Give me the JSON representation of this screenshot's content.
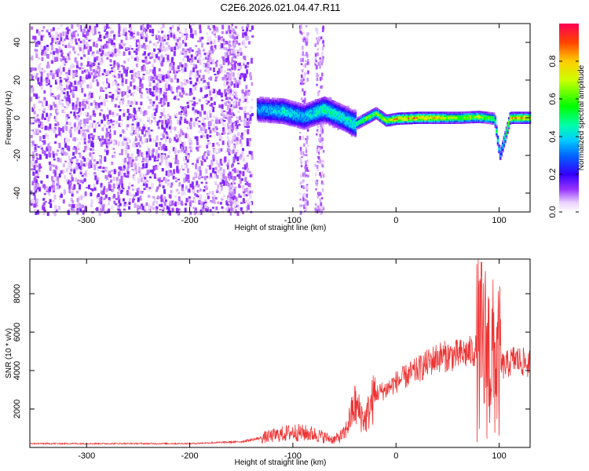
{
  "figure": {
    "title": "C2E6.2026.021.04.47.R11"
  },
  "chart_data": [
    {
      "type": "heatmap",
      "title": "C2E6.2026.021.04.47.R11",
      "xlabel": "Height of straight line (km)",
      "ylabel": "Frequency (Hz)",
      "xlim": [
        -355,
        130
      ],
      "ylim": [
        -50,
        50
      ],
      "xticks": [
        -300,
        -200,
        -100,
        0,
        100
      ],
      "yticks": [
        -40,
        -20,
        0,
        20,
        40
      ],
      "colorbar": {
        "label": "Normalized spectral amplitude",
        "range": [
          0,
          1
        ],
        "ticks": [
          0.0,
          0.2,
          0.4,
          0.6,
          0.8
        ],
        "colormap": "rainbow (white-violet-blue-cyan-green-yellow-red)"
      },
      "regions": [
        {
          "x_range": [
            -355,
            -140
          ],
          "description": "scattered low-amplitude noise (0.0-0.2) across all frequencies"
        },
        {
          "x_range": [
            -140,
            -40
          ],
          "frequency_center": 3,
          "amplitude_range": [
            0.2,
            0.5
          ]
        },
        {
          "x_range": [
            -40,
            130
          ],
          "frequency_center": 0.5,
          "amplitude_range": [
            0.5,
            1.0
          ]
        }
      ],
      "ridge": [
        {
          "x": -135,
          "f": 5,
          "a": 0.35
        },
        {
          "x": -110,
          "f": 4,
          "a": 0.45
        },
        {
          "x": -90,
          "f": 1,
          "a": 0.4
        },
        {
          "x": -70,
          "f": 5,
          "a": 0.5
        },
        {
          "x": -50,
          "f": 0,
          "a": 0.45
        },
        {
          "x": -40,
          "f": -3,
          "a": 0.5
        },
        {
          "x": -30,
          "f": 0,
          "a": 0.7
        },
        {
          "x": -20,
          "f": 3,
          "a": 0.65
        },
        {
          "x": -10,
          "f": -1,
          "a": 0.75
        },
        {
          "x": 0,
          "f": 0,
          "a": 0.85
        },
        {
          "x": 20,
          "f": 0.5,
          "a": 0.9
        },
        {
          "x": 40,
          "f": 0.5,
          "a": 0.8
        },
        {
          "x": 60,
          "f": 0.5,
          "a": 0.7
        },
        {
          "x": 80,
          "f": 1,
          "a": 0.75
        },
        {
          "x": 95,
          "f": 0,
          "a": 0.6
        },
        {
          "x": 100,
          "f": -20,
          "a": 0.35
        },
        {
          "x": 110,
          "f": 0.5,
          "a": 0.85
        },
        {
          "x": 130,
          "f": 0.5,
          "a": 0.8
        }
      ]
    },
    {
      "type": "line",
      "xlabel": "Height of straight line (km)",
      "ylabel": "SNR (10 * v/v)",
      "xlim": [
        -355,
        130
      ],
      "ylim": [
        0,
        9800
      ],
      "xticks": [
        -300,
        -200,
        -100,
        0,
        100
      ],
      "yticks": [
        2000,
        4000,
        6000,
        8000
      ],
      "color": "#ee3333",
      "envelope": [
        {
          "x": -355,
          "y": 200
        },
        {
          "x": -200,
          "y": 200
        },
        {
          "x": -150,
          "y": 300
        },
        {
          "x": -120,
          "y": 600
        },
        {
          "x": -100,
          "y": 800
        },
        {
          "x": -80,
          "y": 700
        },
        {
          "x": -60,
          "y": 400
        },
        {
          "x": -50,
          "y": 700
        },
        {
          "x": -40,
          "y": 2200
        },
        {
          "x": -30,
          "y": 1400
        },
        {
          "x": -20,
          "y": 2800
        },
        {
          "x": -10,
          "y": 3000
        },
        {
          "x": 0,
          "y": 3400
        },
        {
          "x": 20,
          "y": 4000
        },
        {
          "x": 40,
          "y": 4700
        },
        {
          "x": 60,
          "y": 4800
        },
        {
          "x": 75,
          "y": 5000
        },
        {
          "x": 85,
          "y": 5200
        },
        {
          "x": 95,
          "y": 4500
        },
        {
          "x": 105,
          "y": 4200
        },
        {
          "x": 115,
          "y": 4600
        },
        {
          "x": 130,
          "y": 4300
        }
      ]
    }
  ]
}
